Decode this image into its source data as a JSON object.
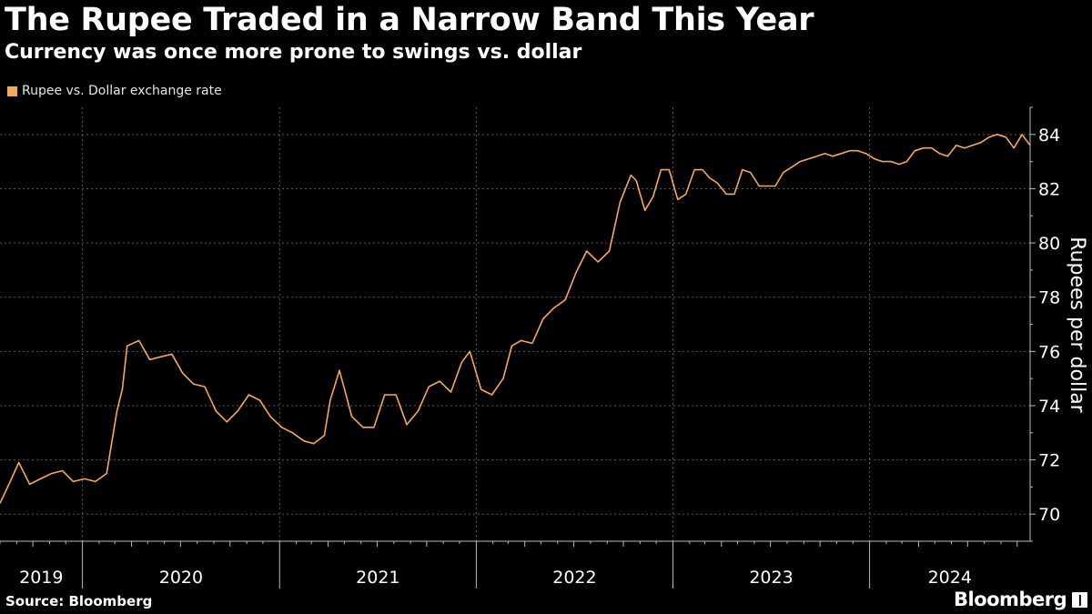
{
  "header": {
    "title": "The Rupee Traded in a Narrow Band This Year",
    "subtitle": "Currency was once more prone to swings vs. dollar"
  },
  "footer": {
    "source": "Source: Bloomberg",
    "brand": "Bloomberg",
    "brand_icon": "chart-icon"
  },
  "colors": {
    "line": "#f5a95b",
    "background": "#000000",
    "grid": "#555555",
    "text": "#ffffff"
  },
  "chart_data": {
    "type": "line",
    "title": "The Rupee Traded in a Narrow Band This Year",
    "subtitle": "Currency was once more prone to swings vs. dollar",
    "ylabel": "Rupees per dollar",
    "xlabel": "",
    "y_axis_side": "right",
    "ylim": [
      69,
      85
    ],
    "xlim": [
      "2019-08-01",
      "2024-10-25"
    ],
    "yticks": [
      70,
      72,
      74,
      76,
      78,
      80,
      82,
      84
    ],
    "xticks": [
      {
        "date": "2019-08-01",
        "label": "2019"
      },
      {
        "date": "2020-01-01",
        "label": "2020"
      },
      {
        "date": "2021-01-01",
        "label": "2021"
      },
      {
        "date": "2022-01-01",
        "label": "2022"
      },
      {
        "date": "2023-01-01",
        "label": "2023"
      },
      {
        "date": "2024-01-01",
        "label": "2024"
      }
    ],
    "grid": true,
    "legend_position": "top-left",
    "series": [
      {
        "name": "Rupee vs. Dollar exchange rate",
        "color": "#f5a95b",
        "x": [
          "2019-08-01",
          "2019-08-20",
          "2019-09-05",
          "2019-09-25",
          "2019-10-15",
          "2019-11-05",
          "2019-11-25",
          "2019-12-15",
          "2020-01-05",
          "2020-01-25",
          "2020-02-15",
          "2020-03-05",
          "2020-03-15",
          "2020-03-24",
          "2020-04-15",
          "2020-05-05",
          "2020-05-25",
          "2020-06-15",
          "2020-07-05",
          "2020-07-25",
          "2020-08-15",
          "2020-09-05",
          "2020-09-25",
          "2020-10-15",
          "2020-11-05",
          "2020-11-25",
          "2020-12-15",
          "2021-01-05",
          "2021-01-25",
          "2021-02-15",
          "2021-03-05",
          "2021-03-25",
          "2021-04-05",
          "2021-04-22",
          "2021-05-15",
          "2021-06-05",
          "2021-06-25",
          "2021-07-15",
          "2021-08-05",
          "2021-08-25",
          "2021-09-15",
          "2021-10-05",
          "2021-10-25",
          "2021-11-15",
          "2021-12-05",
          "2021-12-20",
          "2022-01-10",
          "2022-01-30",
          "2022-02-20",
          "2022-03-08",
          "2022-03-25",
          "2022-04-15",
          "2022-05-05",
          "2022-05-25",
          "2022-06-15",
          "2022-07-05",
          "2022-07-25",
          "2022-08-15",
          "2022-09-05",
          "2022-09-25",
          "2022-10-15",
          "2022-10-25",
          "2022-11-10",
          "2022-11-25",
          "2022-12-10",
          "2022-12-25",
          "2023-01-10",
          "2023-01-25",
          "2023-02-10",
          "2023-02-25",
          "2023-03-10",
          "2023-03-25",
          "2023-04-10",
          "2023-04-25",
          "2023-05-10",
          "2023-05-25",
          "2023-06-10",
          "2023-06-25",
          "2023-07-10",
          "2023-07-25",
          "2023-08-10",
          "2023-08-25",
          "2023-09-10",
          "2023-09-25",
          "2023-10-10",
          "2023-10-25",
          "2023-11-10",
          "2023-11-25",
          "2023-12-10",
          "2023-12-25",
          "2024-01-10",
          "2024-01-25",
          "2024-02-10",
          "2024-02-25",
          "2024-03-10",
          "2024-03-25",
          "2024-04-10",
          "2024-04-25",
          "2024-05-10",
          "2024-05-25",
          "2024-06-10",
          "2024-06-25",
          "2024-07-10",
          "2024-07-25",
          "2024-08-10",
          "2024-08-25",
          "2024-09-10",
          "2024-09-25",
          "2024-10-10",
          "2024-10-25"
        ],
        "values": [
          70.4,
          71.2,
          71.9,
          71.1,
          71.3,
          71.5,
          71.6,
          71.2,
          71.3,
          71.2,
          71.5,
          73.8,
          74.6,
          76.2,
          76.4,
          75.7,
          75.8,
          75.9,
          75.2,
          74.8,
          74.7,
          73.8,
          73.4,
          73.8,
          74.4,
          74.2,
          73.6,
          73.2,
          73.0,
          72.7,
          72.6,
          72.9,
          74.2,
          75.3,
          73.6,
          73.2,
          73.2,
          74.4,
          74.4,
          73.3,
          73.8,
          74.7,
          74.9,
          74.5,
          75.6,
          76.0,
          74.6,
          74.4,
          75.0,
          76.2,
          76.4,
          76.3,
          77.2,
          77.6,
          77.9,
          78.9,
          79.7,
          79.3,
          79.7,
          81.5,
          82.5,
          82.3,
          81.2,
          81.7,
          82.7,
          82.7,
          81.6,
          81.8,
          82.7,
          82.7,
          82.4,
          82.2,
          81.8,
          81.8,
          82.7,
          82.6,
          82.1,
          82.1,
          82.1,
          82.6,
          82.8,
          83.0,
          83.1,
          83.2,
          83.3,
          83.2,
          83.3,
          83.4,
          83.4,
          83.3,
          83.1,
          83.0,
          83.0,
          82.9,
          83.0,
          83.4,
          83.5,
          83.5,
          83.3,
          83.2,
          83.6,
          83.5,
          83.6,
          83.7,
          83.9,
          84.0,
          83.9,
          83.5,
          84.0,
          83.6
        ]
      }
    ]
  }
}
